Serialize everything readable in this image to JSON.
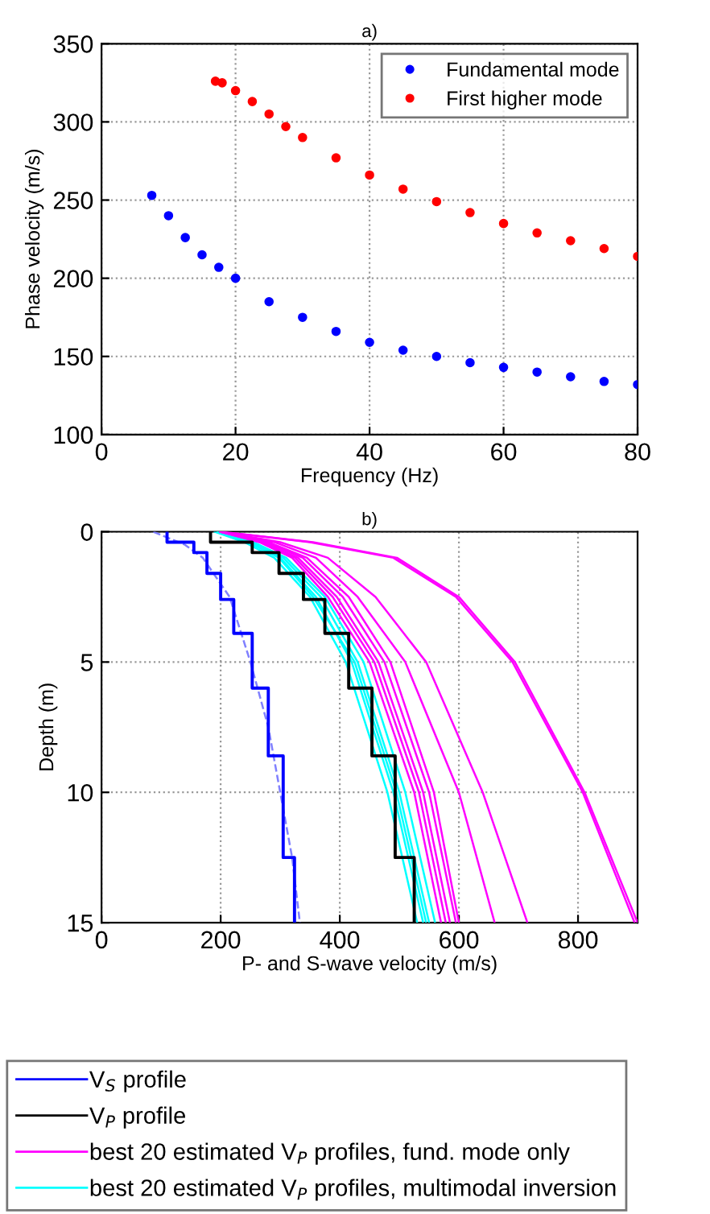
{
  "chart_data": [
    {
      "type": "scatter",
      "title": "a)",
      "xlabel": "Frequency (Hz)",
      "ylabel": "Phase velocity (m/s)",
      "xlim": [
        0,
        80
      ],
      "ylim": [
        100,
        350
      ],
      "xticks": [
        0,
        20,
        40,
        60,
        80
      ],
      "yticks": [
        100,
        150,
        200,
        250,
        300,
        350
      ],
      "grid": true,
      "legend": "top right",
      "marker": "circle",
      "series": [
        {
          "name": "Fundamental mode",
          "color": "#0000ff",
          "x": [
            7.5,
            10,
            12.5,
            15,
            17.5,
            20,
            25,
            30,
            35,
            40,
            45,
            50,
            55,
            60,
            65,
            70,
            75,
            80
          ],
          "values": [
            253,
            240,
            226,
            215,
            207,
            200,
            185,
            175,
            166,
            159,
            154,
            150,
            146,
            143,
            140,
            137,
            134,
            132
          ]
        },
        {
          "name": "First higher mode",
          "color": "#ff0000",
          "x": [
            17,
            18,
            20,
            22.5,
            25,
            27.5,
            30,
            35,
            40,
            45,
            50,
            55,
            60,
            65,
            70,
            75,
            80
          ],
          "values": [
            326,
            325,
            320,
            313,
            305,
            297,
            290,
            277,
            266,
            257,
            249,
            242,
            235,
            229,
            224,
            219,
            214
          ]
        }
      ]
    },
    {
      "type": "line",
      "title": "b)",
      "xlabel": "P- and S-wave velocity (m/s)",
      "ylabel": "Depth (m)",
      "xlim": [
        0,
        900
      ],
      "ylim": [
        15,
        0
      ],
      "xticks": [
        0,
        200,
        400,
        600,
        800
      ],
      "yticks": [
        0,
        5,
        10,
        15
      ],
      "grid": true,
      "legend": "bottom",
      "series": [
        {
          "color": "#00ffff",
          "x": [
            190,
            240,
            290,
            350,
            410,
            480,
            530
          ],
          "values": [
            0,
            0.4,
            1,
            2.5,
            5,
            10,
            15
          ]
        },
        {
          "color": "#00ffff",
          "x": [
            195,
            245,
            300,
            360,
            420,
            490,
            540
          ],
          "values": [
            0,
            0.4,
            1,
            2.5,
            5,
            10,
            15
          ]
        },
        {
          "color": "#00ffff",
          "x": [
            200,
            250,
            305,
            368,
            430,
            500,
            550
          ],
          "values": [
            0,
            0.4,
            1,
            2.5,
            5,
            10,
            15
          ]
        },
        {
          "color": "#00ffff",
          "x": [
            200,
            255,
            310,
            375,
            440,
            510,
            560
          ],
          "values": [
            0,
            0.4,
            1,
            2.5,
            5,
            10,
            15
          ]
        },
        {
          "name": "best 20 estimated V$_{P}$ profiles, multimodal inversion",
          "color": "#00ffff",
          "x": [
            195,
            248,
            298,
            355,
            425,
            495,
            545
          ],
          "values": [
            0,
            0.4,
            1,
            2.5,
            5,
            10,
            15
          ]
        },
        {
          "name": "best 20 estimated V$_{P}$ profiles, fund. mode only",
          "color": "#ff00ff",
          "x": [
            200,
            265,
            320,
            380,
            450,
            525,
            570
          ],
          "values": [
            0,
            0.4,
            1,
            2.5,
            5,
            10,
            15
          ]
        },
        {
          "color": "#ff00ff",
          "x": [
            200,
            268,
            325,
            388,
            458,
            533,
            578
          ],
          "values": [
            0,
            0.4,
            1,
            2.5,
            5,
            10,
            15
          ]
        },
        {
          "color": "#ff00ff",
          "x": [
            200,
            270,
            330,
            395,
            465,
            540,
            585
          ],
          "values": [
            0,
            0.4,
            1,
            2.5,
            5,
            10,
            15
          ]
        },
        {
          "color": "#ff00ff",
          "x": [
            200,
            275,
            338,
            405,
            475,
            550,
            595
          ],
          "values": [
            0,
            0.4,
            1,
            2.5,
            5,
            10,
            15
          ]
        },
        {
          "color": "#ff00ff",
          "x": [
            200,
            280,
            345,
            415,
            485,
            558,
            600
          ],
          "values": [
            0,
            0.4,
            1,
            2.5,
            5,
            10,
            15
          ]
        },
        {
          "color": "#ff00ff",
          "x": [
            200,
            290,
            360,
            430,
            510,
            600,
            660
          ],
          "values": [
            0,
            0.4,
            1,
            2.5,
            5,
            10,
            15
          ]
        },
        {
          "color": "#ff00ff",
          "x": [
            200,
            300,
            380,
            460,
            545,
            640,
            715
          ],
          "values": [
            0,
            0.4,
            1,
            2.5,
            5,
            10,
            15
          ]
        },
        {
          "color": "#ff00ff",
          "x": [
            200,
            350,
            490,
            595,
            690,
            808,
            895
          ],
          "values": [
            0,
            0.4,
            1,
            2.5,
            5,
            10,
            15
          ]
        },
        {
          "color": "#ff00ff",
          "x": [
            200,
            355,
            496,
            600,
            694,
            811,
            900
          ],
          "values": [
            0,
            0.4,
            1,
            2.5,
            5,
            10,
            15
          ]
        },
        {
          "color": "#8080ff",
          "line_style": "dashed",
          "x": [
            87,
            140,
            170,
            215,
            250,
            280,
            300,
            320,
            333
          ],
          "values": [
            0,
            0.5,
            1,
            2.5,
            5,
            7.5,
            10,
            12.5,
            15
          ]
        },
        {
          "name": "V$_{S}$ profile",
          "color": "#0000ff",
          "x": [
            110,
            110,
            155,
            155,
            177,
            177,
            200,
            200,
            222,
            222,
            253,
            253,
            280,
            280,
            305,
            305,
            324,
            324
          ],
          "values": [
            0,
            0.4,
            0.4,
            0.8,
            0.8,
            1.6,
            1.6,
            2.6,
            2.6,
            3.9,
            3.9,
            6.0,
            6.0,
            8.6,
            8.6,
            12.5,
            12.5,
            15
          ]
        },
        {
          "name": "V$_{P}$ profile",
          "color": "#000000",
          "x": [
            183,
            183,
            253,
            253,
            298,
            298,
            339,
            339,
            375,
            375,
            415,
            415,
            454,
            454,
            493,
            493,
            525,
            525
          ],
          "values": [
            0,
            0.4,
            0.4,
            0.8,
            0.8,
            1.6,
            1.6,
            2.6,
            2.6,
            3.9,
            3.9,
            6.0,
            6.0,
            8.6,
            8.6,
            12.5,
            12.5,
            15
          ]
        }
      ]
    }
  ]
}
